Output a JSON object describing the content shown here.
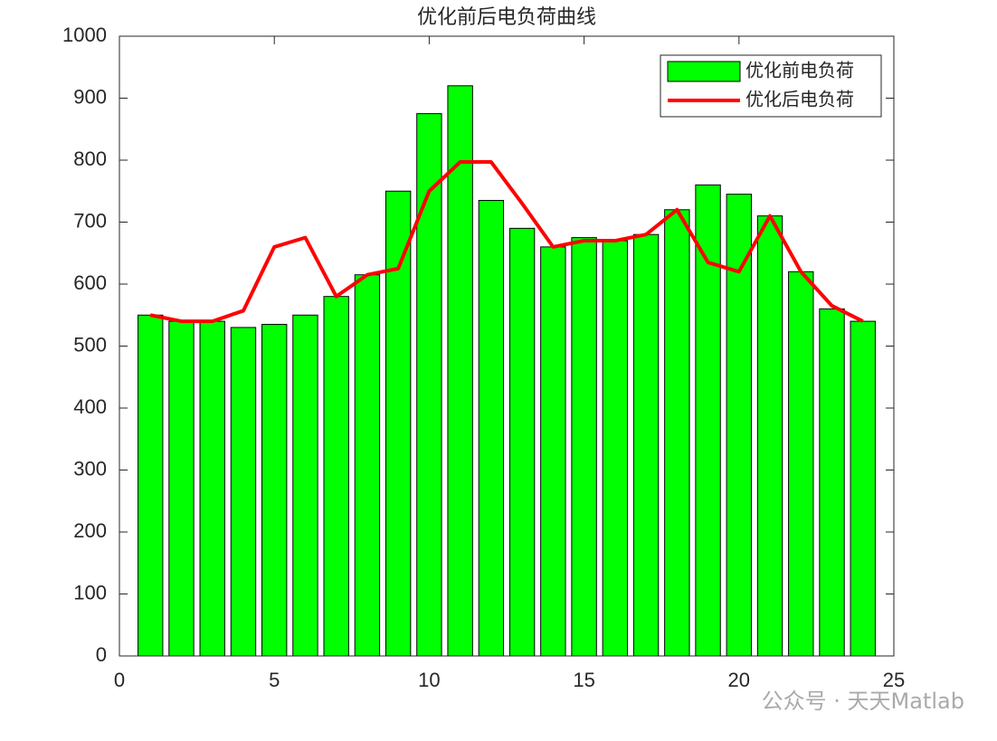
{
  "chart_data": {
    "type": "bar",
    "title": "优化前后电负荷曲线",
    "x": [
      1,
      2,
      3,
      4,
      5,
      6,
      7,
      8,
      9,
      10,
      11,
      12,
      13,
      14,
      15,
      16,
      17,
      18,
      19,
      20,
      21,
      22,
      23,
      24
    ],
    "series": [
      {
        "name": "优化前电负荷",
        "type": "bar",
        "color": "#00ff00",
        "values": [
          550,
          540,
          540,
          530,
          535,
          550,
          580,
          615,
          750,
          875,
          920,
          735,
          690,
          660,
          675,
          670,
          680,
          720,
          760,
          745,
          710,
          620,
          560,
          540
        ]
      },
      {
        "name": "优化后电负荷",
        "type": "line",
        "color": "#ff0000",
        "values": [
          550,
          540,
          540,
          557,
          660,
          675,
          580,
          615,
          625,
          750,
          797,
          797,
          730,
          660,
          670,
          670,
          680,
          720,
          635,
          620,
          710,
          620,
          565,
          540
        ]
      }
    ],
    "xlim": [
      0,
      25
    ],
    "xticks": [
      0,
      5,
      10,
      15,
      20,
      25
    ],
    "ylim": [
      0,
      1000
    ],
    "yticks": [
      0,
      100,
      200,
      300,
      400,
      500,
      600,
      700,
      800,
      900,
      1000
    ],
    "grid": false,
    "legend": "northeast"
  },
  "watermark": "公众号 · 天天Matlab"
}
